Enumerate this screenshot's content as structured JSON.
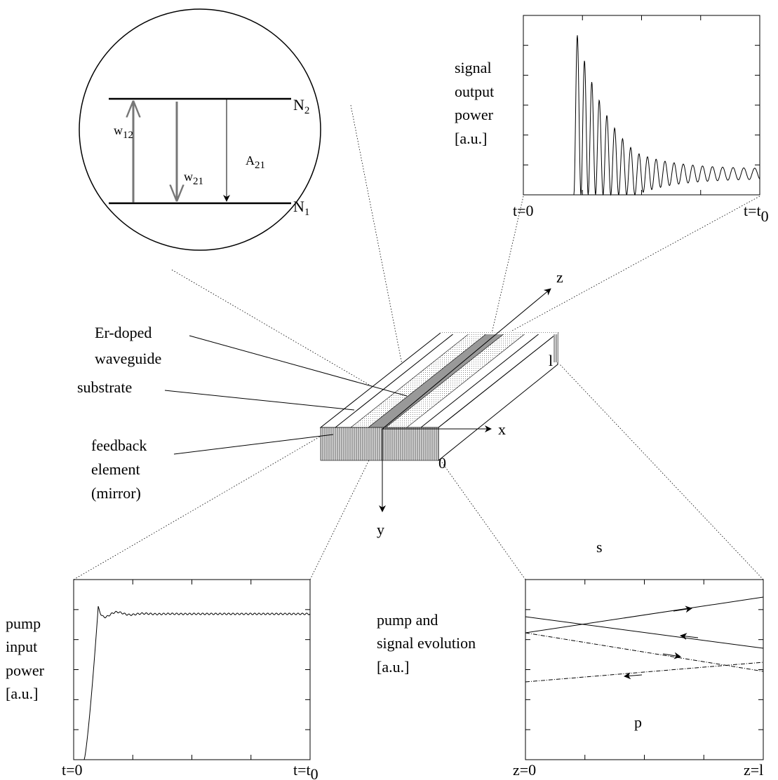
{
  "inset": {
    "levels": [
      {
        "main": "N",
        "sub": "2"
      },
      {
        "main": "N",
        "sub": "1"
      }
    ],
    "rates": [
      {
        "main": "w",
        "sub": "12"
      },
      {
        "main": "w",
        "sub": "21"
      },
      {
        "main": "A",
        "sub": "21"
      }
    ]
  },
  "signal_plot": {
    "label": [
      "signal",
      "output",
      "power",
      "[a.u.]"
    ],
    "x_start": "t=0",
    "x_end": {
      "main": "t=t",
      "sub": "0"
    }
  },
  "pump_plot": {
    "label": [
      "pump",
      "input",
      "power",
      "[a.u.]"
    ],
    "x_start": "t=0",
    "x_end": {
      "main": "t=t",
      "sub": "0"
    }
  },
  "evolution_plot": {
    "label": [
      "pump and",
      "signal evolution",
      "[a.u.]"
    ],
    "signal": "s",
    "pump": "p",
    "x_start": "z=0",
    "x_end": "z=l"
  },
  "device": {
    "axes": [
      "x",
      "y",
      "z"
    ],
    "length": "l",
    "origin": "0",
    "labels": {
      "waveguide": [
        "Er-doped",
        "waveguide"
      ],
      "substrate": "substrate",
      "mirror": [
        "feedback",
        "element",
        "(mirror)"
      ]
    }
  }
}
